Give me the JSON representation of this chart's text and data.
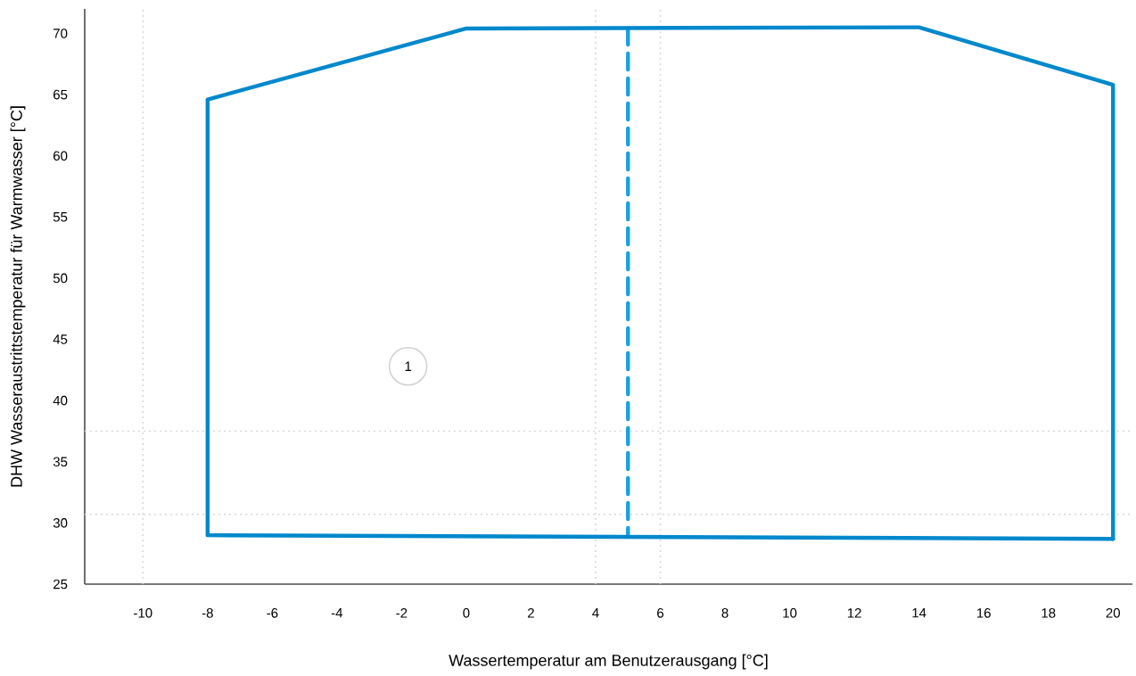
{
  "chart_data": {
    "type": "line",
    "xlabel": "Wassertemperatur am Benutzerausgang [°C]",
    "ylabel": "DHW Wasseraustrittstemperatur für Warmwasser [°C]",
    "xlim": [
      -11.8,
      20.6
    ],
    "ylim": [
      25,
      72
    ],
    "xticks": [
      -10,
      -8,
      -6,
      -4,
      -2,
      0,
      2,
      4,
      6,
      8,
      10,
      12,
      14,
      16,
      18,
      20
    ],
    "yticks": [
      25,
      30,
      35,
      40,
      45,
      50,
      55,
      60,
      65,
      70
    ],
    "grid": false,
    "marker": "none",
    "series": [
      {
        "color": "#1aa0e0",
        "line_style": "dashed",
        "x": [
          5,
          5
        ],
        "values": [
          70.4,
          29.0
        ]
      },
      {
        "color": "#0088cc",
        "line_style": "solid",
        "x": [
          -8,
          -8,
          0,
          14,
          20,
          20
        ],
        "values": [
          29.0,
          64.6,
          70.4,
          70.5,
          65.8,
          28.7
        ]
      },
      {
        "color": "#0088cc",
        "line_style": "solid",
        "x": [
          -8,
          20
        ],
        "values": [
          29.0,
          28.7
        ]
      }
    ],
    "ref_lines": [
      {
        "axis": "x",
        "value": -10,
        "color": "#d9d9d9",
        "line_style": "dotted"
      },
      {
        "axis": "x",
        "value": 4,
        "color": "#d9d9d9",
        "line_style": "dotted"
      },
      {
        "axis": "x",
        "value": 6,
        "color": "#d9d9d9",
        "line_style": "dotted"
      },
      {
        "axis": "y",
        "value": 37.5,
        "color": "#d9d9d9",
        "line_style": "dotted"
      },
      {
        "axis": "y",
        "value": 30.7,
        "color": "#d9d9d9",
        "line_style": "dotted"
      }
    ],
    "annotations": [
      {
        "text": "1",
        "x": -1.8,
        "y": 42.8
      }
    ]
  }
}
